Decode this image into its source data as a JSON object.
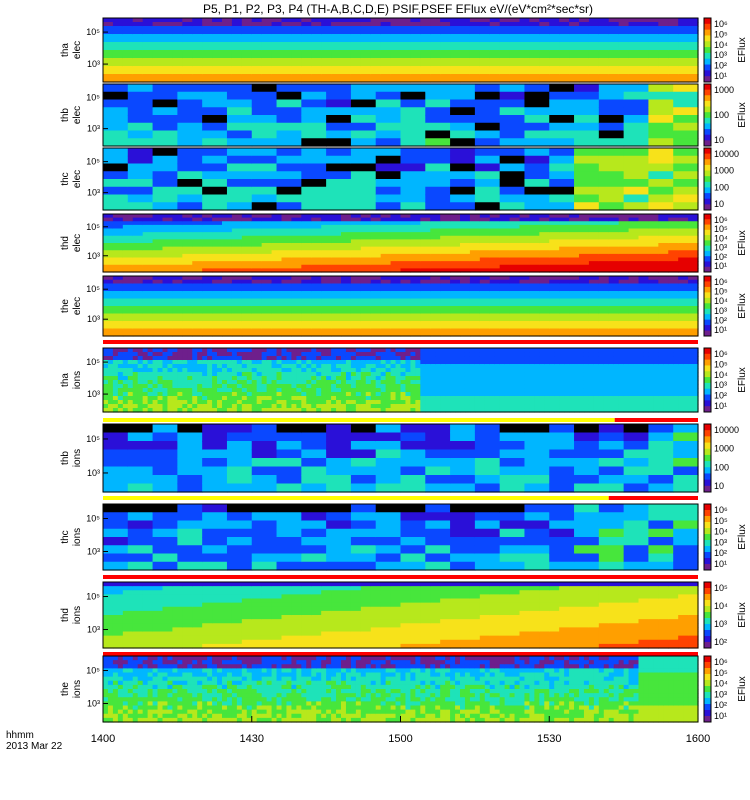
{
  "chart_data": {
    "type": "heatmap",
    "title": "P5, P1, P2, P3, P4 (TH-A,B,C,D,E) PSIF,PSEF EFlux eV/(eV*cm²*sec*sr)",
    "x_tick_labels": [
      "1400",
      "1430",
      "1500",
      "1530",
      "1600"
    ],
    "x_range": [
      "14:00",
      "16:00"
    ],
    "time_label_line1": "hhmm",
    "time_label_line2": "2013 Mar 22",
    "colorbar_title": "EFlux",
    "palette": [
      "#ffffff",
      "#6e1f8c",
      "#2a10d8",
      "#0a48ff",
      "#00b6ff",
      "#1ee3b9",
      "#47e63c",
      "#b7e81c",
      "#f7e21a",
      "#ff9f00",
      "#ff4300",
      "#e60000"
    ],
    "panels": [
      {
        "probe": "tha",
        "species": "elec",
        "y_ticks": [
          "10⁵",
          "10³"
        ],
        "cbar_ticks": [
          "10⁶",
          "10⁵",
          "10⁴",
          "10³",
          "10²",
          "10¹"
        ],
        "show_cbar_title": true,
        "mode_bar": "none",
        "texture": "smooth",
        "change_frac": 0.53
      },
      {
        "probe": "thb",
        "species": "elec",
        "y_ticks": [
          "10⁵",
          "10³"
        ],
        "cbar_ticks": [
          "1000",
          "100",
          "10"
        ],
        "show_cbar_title": true,
        "mode_bar": "none",
        "texture": "blocky",
        "change_frac": 0.9
      },
      {
        "probe": "thc",
        "species": "elec",
        "y_ticks": [
          "10⁵",
          "10³"
        ],
        "cbar_ticks": [
          "10000",
          "1000",
          "100",
          "10"
        ],
        "show_cbar_title": false,
        "mode_bar": "none",
        "texture": "blocky",
        "change_frac": 0.77
      },
      {
        "probe": "thd",
        "species": "elec",
        "y_ticks": [
          "10⁵",
          "10³"
        ],
        "cbar_ticks": [
          "10⁶",
          "10⁵",
          "10⁴",
          "10³",
          "10²",
          "10¹"
        ],
        "show_cbar_title": true,
        "mode_bar": "none",
        "texture": "smooth",
        "change_frac": 1.0
      },
      {
        "probe": "the",
        "species": "elec",
        "y_ticks": [
          "10⁵",
          "10³"
        ],
        "cbar_ticks": [
          "10⁶",
          "10⁵",
          "10⁴",
          "10³",
          "10²",
          "10¹"
        ],
        "show_cbar_title": true,
        "mode_bar": "red",
        "texture": "smooth",
        "change_frac": 0.9
      },
      {
        "probe": "tha",
        "species": "ions",
        "y_ticks": [
          "10⁵",
          "10³"
        ],
        "cbar_ticks": [
          "10⁶",
          "10⁵",
          "10⁴",
          "10³",
          "10²",
          "10¹"
        ],
        "show_cbar_title": true,
        "mode_bar": "yellow-red",
        "mode_switch_frac": 0.86,
        "texture": "noisy",
        "change_frac": 0.53
      },
      {
        "probe": "thb",
        "species": "ions",
        "y_ticks": [
          "10⁵",
          "10³"
        ],
        "cbar_ticks": [
          "10000",
          "1000",
          "100",
          "10"
        ],
        "show_cbar_title": false,
        "mode_bar": "yellow-red",
        "mode_switch_frac": 0.85,
        "texture": "blocky",
        "change_frac": 0.9
      },
      {
        "probe": "thc",
        "species": "ions",
        "y_ticks": [
          "10⁵",
          "10³"
        ],
        "cbar_ticks": [
          "10⁶",
          "10⁵",
          "10⁴",
          "10³",
          "10²",
          "10¹"
        ],
        "show_cbar_title": true,
        "mode_bar": "red",
        "texture": "blocky",
        "change_frac": 0.77
      },
      {
        "probe": "thd",
        "species": "ions",
        "y_ticks": [
          "10⁵",
          "10³"
        ],
        "cbar_ticks": [
          "10⁵",
          "10⁴",
          "10³",
          "10²"
        ],
        "show_cbar_title": true,
        "mode_bar": "red",
        "texture": "smooth",
        "change_frac": 1.0
      },
      {
        "probe": "the",
        "species": "ions",
        "y_ticks": [
          "10⁵",
          "10³"
        ],
        "cbar_ticks": [
          "10⁶",
          "10⁵",
          "10⁴",
          "10³",
          "10²",
          "10¹"
        ],
        "show_cbar_title": true,
        "mode_bar": "none",
        "texture": "noisy",
        "change_frac": 0.9
      }
    ]
  }
}
